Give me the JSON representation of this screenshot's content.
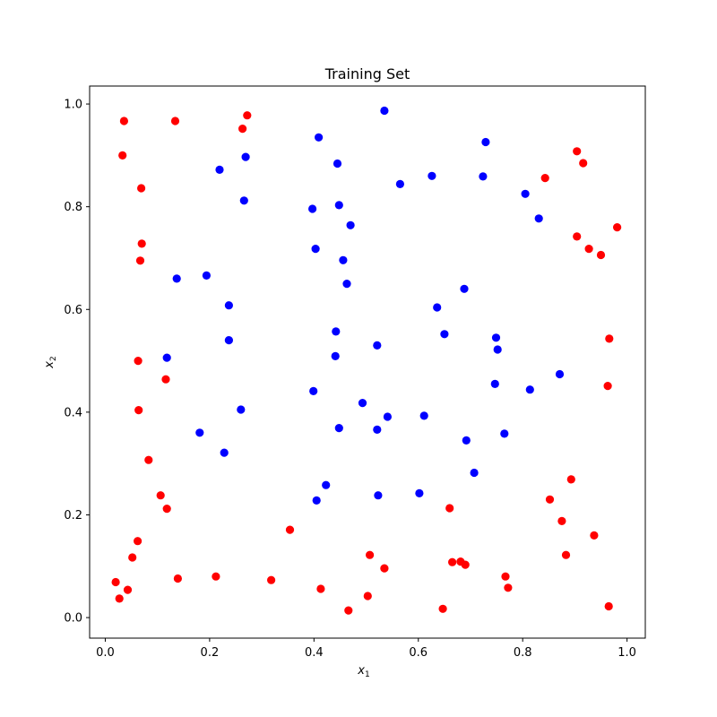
{
  "chart_data": {
    "type": "scatter",
    "title": "Training Set",
    "xlabel": "x",
    "xlabel_sub": "1",
    "ylabel": "x",
    "ylabel_sub": "2",
    "xlim": [
      -0.03,
      1.035
    ],
    "ylim": [
      -0.04,
      1.035
    ],
    "xticks": [
      0.0,
      0.2,
      0.4,
      0.6,
      0.8,
      1.0
    ],
    "yticks": [
      0.0,
      0.2,
      0.4,
      0.6,
      0.8,
      1.0
    ],
    "xtick_labels": [
      "0.0",
      "0.2",
      "0.4",
      "0.6",
      "0.8",
      "1.0"
    ],
    "ytick_labels": [
      "0.0",
      "0.2",
      "0.4",
      "0.6",
      "0.8",
      "1.0"
    ],
    "grid": false,
    "series": [
      {
        "color": "#ff0000",
        "points": [
          [
            0.036,
            0.967
          ],
          [
            0.134,
            0.967
          ],
          [
            0.272,
            0.978
          ],
          [
            0.263,
            0.952
          ],
          [
            0.033,
            0.9
          ],
          [
            0.069,
            0.836
          ],
          [
            0.07,
            0.728
          ],
          [
            0.067,
            0.695
          ],
          [
            0.063,
            0.5
          ],
          [
            0.116,
            0.464
          ],
          [
            0.064,
            0.404
          ],
          [
            0.083,
            0.307
          ],
          [
            0.106,
            0.238
          ],
          [
            0.118,
            0.212
          ],
          [
            0.062,
            0.149
          ],
          [
            0.052,
            0.117
          ],
          [
            0.02,
            0.069
          ],
          [
            0.043,
            0.054
          ],
          [
            0.027,
            0.037
          ],
          [
            0.139,
            0.076
          ],
          [
            0.212,
            0.08
          ],
          [
            0.318,
            0.073
          ],
          [
            0.354,
            0.171
          ],
          [
            0.413,
            0.056
          ],
          [
            0.466,
            0.014
          ],
          [
            0.503,
            0.042
          ],
          [
            0.507,
            0.122
          ],
          [
            0.535,
            0.096
          ],
          [
            0.647,
            0.017
          ],
          [
            0.66,
            0.213
          ],
          [
            0.665,
            0.108
          ],
          [
            0.681,
            0.109
          ],
          [
            0.69,
            0.103
          ],
          [
            0.767,
            0.08
          ],
          [
            0.772,
            0.058
          ],
          [
            0.843,
            0.856
          ],
          [
            0.904,
            0.908
          ],
          [
            0.916,
            0.885
          ],
          [
            0.904,
            0.742
          ],
          [
            0.927,
            0.718
          ],
          [
            0.95,
            0.706
          ],
          [
            0.981,
            0.76
          ],
          [
            0.966,
            0.543
          ],
          [
            0.963,
            0.451
          ],
          [
            0.852,
            0.23
          ],
          [
            0.893,
            0.269
          ],
          [
            0.875,
            0.188
          ],
          [
            0.883,
            0.122
          ],
          [
            0.937,
            0.16
          ],
          [
            0.965,
            0.022
          ]
        ]
      },
      {
        "color": "#0000ff",
        "points": [
          [
            0.535,
            0.987
          ],
          [
            0.409,
            0.935
          ],
          [
            0.445,
            0.884
          ],
          [
            0.729,
            0.926
          ],
          [
            0.565,
            0.844
          ],
          [
            0.626,
            0.86
          ],
          [
            0.724,
            0.859
          ],
          [
            0.219,
            0.872
          ],
          [
            0.269,
            0.897
          ],
          [
            0.266,
            0.812
          ],
          [
            0.397,
            0.796
          ],
          [
            0.448,
            0.803
          ],
          [
            0.47,
            0.764
          ],
          [
            0.805,
            0.825
          ],
          [
            0.831,
            0.777
          ],
          [
            0.403,
            0.718
          ],
          [
            0.456,
            0.696
          ],
          [
            0.463,
            0.65
          ],
          [
            0.137,
            0.66
          ],
          [
            0.194,
            0.666
          ],
          [
            0.237,
            0.608
          ],
          [
            0.688,
            0.64
          ],
          [
            0.636,
            0.604
          ],
          [
            0.442,
            0.557
          ],
          [
            0.65,
            0.552
          ],
          [
            0.749,
            0.545
          ],
          [
            0.752,
            0.522
          ],
          [
            0.237,
            0.54
          ],
          [
            0.521,
            0.53
          ],
          [
            0.441,
            0.509
          ],
          [
            0.118,
            0.506
          ],
          [
            0.871,
            0.474
          ],
          [
            0.747,
            0.455
          ],
          [
            0.814,
            0.444
          ],
          [
            0.399,
            0.441
          ],
          [
            0.493,
            0.418
          ],
          [
            0.26,
            0.405
          ],
          [
            0.541,
            0.391
          ],
          [
            0.611,
            0.393
          ],
          [
            0.181,
            0.36
          ],
          [
            0.448,
            0.369
          ],
          [
            0.521,
            0.366
          ],
          [
            0.765,
            0.358
          ],
          [
            0.692,
            0.345
          ],
          [
            0.228,
            0.321
          ],
          [
            0.707,
            0.282
          ],
          [
            0.423,
            0.258
          ],
          [
            0.523,
            0.238
          ],
          [
            0.602,
            0.242
          ],
          [
            0.405,
            0.228
          ]
        ]
      }
    ]
  }
}
